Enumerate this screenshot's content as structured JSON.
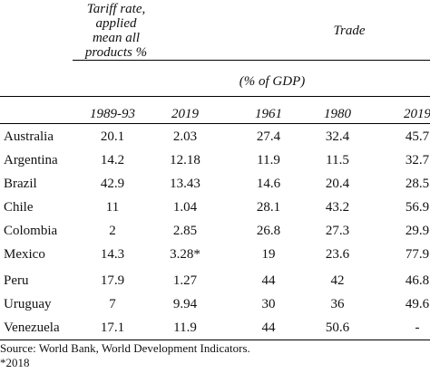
{
  "header": {
    "tariff_lines": [
      "Tariff rate,",
      "applied",
      "mean all",
      "products %"
    ],
    "trade": "Trade",
    "pct_gdp": "(% of GDP)"
  },
  "columns": [
    "1989-93",
    "2019",
    "1961",
    "1980",
    "2019"
  ],
  "rows": [
    {
      "country": "Australia",
      "values": [
        "20.1",
        "2.03",
        "27.4",
        "32.4",
        "45.7"
      ]
    },
    {
      "country": "Argentina",
      "values": [
        "14.2",
        "12.18",
        "11.9",
        "11.5",
        "32.7"
      ]
    },
    {
      "country": "Brazil",
      "values": [
        "42.9",
        "13.43",
        "14.6",
        "20.4",
        "28.5"
      ]
    },
    {
      "country": "Chile",
      "values": [
        "11",
        "1.04",
        "28.1",
        "43.2",
        "56.9"
      ]
    },
    {
      "country": "Colombia",
      "values": [
        "2",
        "2.85",
        "26.8",
        "27.3",
        "29.9"
      ]
    },
    {
      "country": "Mexico",
      "values": [
        "14.3",
        "3.28*",
        "19",
        "23.6",
        "77.9"
      ]
    },
    {
      "country": "Peru",
      "values": [
        "17.9",
        "1.27",
        "44",
        "42",
        "46.8"
      ]
    },
    {
      "country": "Uruguay",
      "values": [
        "7",
        "9.94",
        "30",
        "36",
        "49.6"
      ]
    },
    {
      "country": "Venezuela",
      "values": [
        "17.1",
        "11.9",
        "44",
        "50.6",
        "-"
      ]
    }
  ],
  "footer": {
    "source": "Source: World Bank, World Development Indicators.",
    "note": "*2018"
  }
}
